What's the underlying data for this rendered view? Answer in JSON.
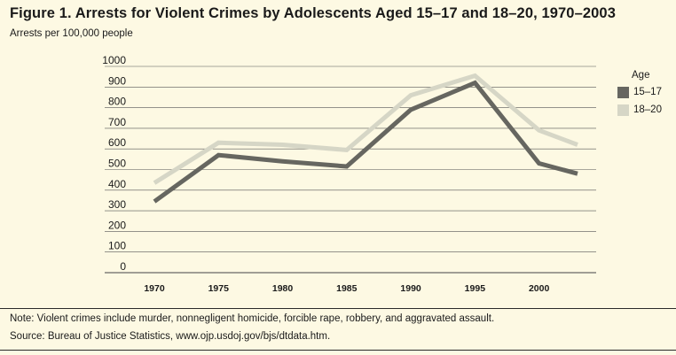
{
  "figure": {
    "title": "Figure 1. Arrests for Violent Crimes by Adolescents Aged 15–17 and 18–20, 1970–2003",
    "subtitle": "Arrests per 100,000 people",
    "note": "Note: Violent crimes include murder, nonnegligent homicide, forcible rape, robbery, and aggravated assault.",
    "source": "Source: Bureau of Justice Statistics, www.ojp.usdoj.gov/bjs/dtdata.htm."
  },
  "legend": {
    "title": "Age",
    "items": [
      {
        "label": "15–17",
        "color": "#666660"
      },
      {
        "label": "18–20",
        "color": "#d6d6c6"
      }
    ]
  },
  "chart_data": {
    "type": "line",
    "title": "Figure 1. Arrests for Violent Crimes by Adolescents Aged 15–17 and 18–20, 1970–2003",
    "ylabel": "Arrests per 100,000 people",
    "xlabel": "",
    "ylim": [
      0,
      1000
    ],
    "yticks": [
      0,
      100,
      200,
      300,
      400,
      500,
      600,
      700,
      800,
      900,
      1000
    ],
    "xlim": [
      1970,
      2003
    ],
    "xticks": [
      1970,
      1975,
      1980,
      1985,
      1990,
      1995,
      2000
    ],
    "grid": true,
    "legend_position": "right",
    "series": [
      {
        "name": "15–17",
        "color": "#666660",
        "x": [
          1970,
          1975,
          1980,
          1985,
          1990,
          1995,
          2000,
          2003
        ],
        "y": [
          345,
          570,
          540,
          515,
          790,
          920,
          530,
          480
        ]
      },
      {
        "name": "18–20",
        "color": "#d6d6c6",
        "x": [
          1970,
          1975,
          1980,
          1985,
          1990,
          1995,
          2000,
          2003
        ],
        "y": [
          435,
          630,
          620,
          595,
          860,
          955,
          690,
          620
        ]
      }
    ]
  }
}
